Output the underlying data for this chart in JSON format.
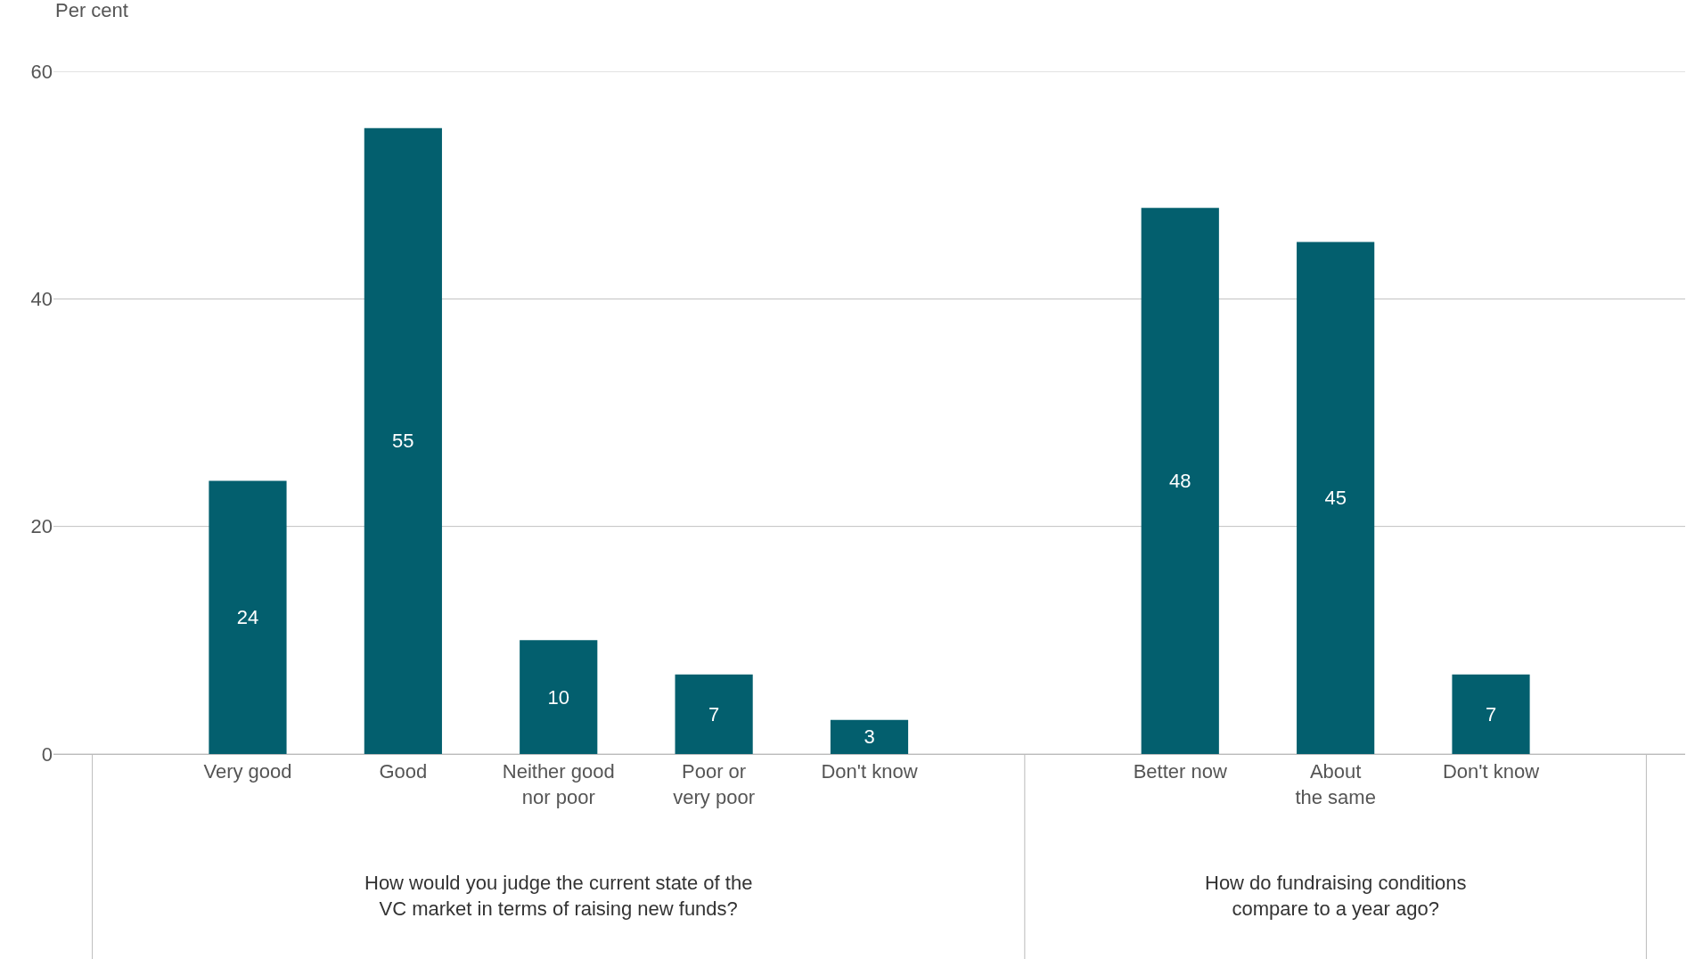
{
  "chart_data": {
    "type": "bar",
    "ylabel": "Per cent",
    "categories": [
      "Very good",
      "Good",
      "Neither good\nnor poor",
      "Poor or\nvery poor",
      "Don't know",
      null,
      "Better now",
      "About\nthe same",
      "Don't know"
    ],
    "values": [
      24,
      55,
      10,
      7,
      3,
      null,
      48,
      45,
      7
    ],
    "color": "#035f6e",
    "data_labels": true,
    "ylim": [
      0,
      60
    ],
    "yticks": [
      0,
      20,
      40,
      60
    ],
    "grid": "y",
    "annotations": [
      "How would you judge the current state of the\nVC market in terms of raising new funds?",
      "How do fundraising conditions\ncompare to a year ago?"
    ]
  }
}
